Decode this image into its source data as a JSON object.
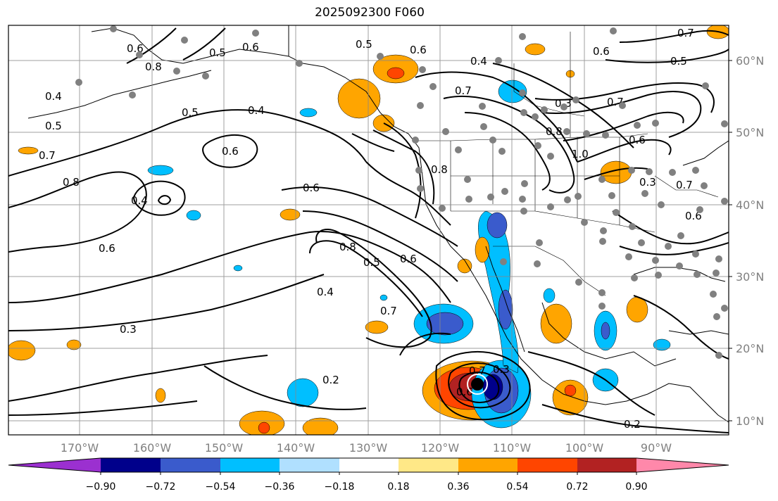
{
  "title": "2025092300 F060",
  "latitude_labels": [
    "60°N",
    "50°N",
    "40°N",
    "30°N",
    "20°N",
    "10°N"
  ],
  "longitude_labels": [
    "170°W",
    "160°W",
    "150°W",
    "140°W",
    "130°W",
    "120°W",
    "110°W",
    "100°W",
    "90°W"
  ],
  "contour_labels": [
    "0.6",
    "0.5",
    "0.7",
    "0.6",
    "0.5",
    "0.8",
    "0.4",
    "0.5",
    "0.4",
    "0.5",
    "0.7",
    "0.6",
    "0.8",
    "0.6",
    "0.6",
    "0.4",
    "0.6",
    "0.8",
    "0.5",
    "0.6",
    "0.7",
    "0.4",
    "0.3",
    "0.8",
    "1.0",
    "0.7",
    "0.6",
    "0.6",
    "0.8",
    "0.5",
    "0.6",
    "0.4",
    "0.7",
    "0.3",
    "0.2",
    "0.2",
    "0.6",
    "0.3",
    "0.7",
    "0.3",
    "0.7"
  ],
  "colorbar": {
    "tick_labels": [
      "−0.90",
      "−0.72",
      "−0.54",
      "−0.36",
      "−0.18",
      "0.18",
      "0.36",
      "0.54",
      "0.72",
      "0.90"
    ],
    "colors": [
      "#9b30d0",
      "#00008b",
      "#3a5bcc",
      "#00bfff",
      "#b0e0ff",
      "#ffffff",
      "#ffe887",
      "#ffa500",
      "#ff4500",
      "#b22222",
      "#ff88aa"
    ]
  }
}
